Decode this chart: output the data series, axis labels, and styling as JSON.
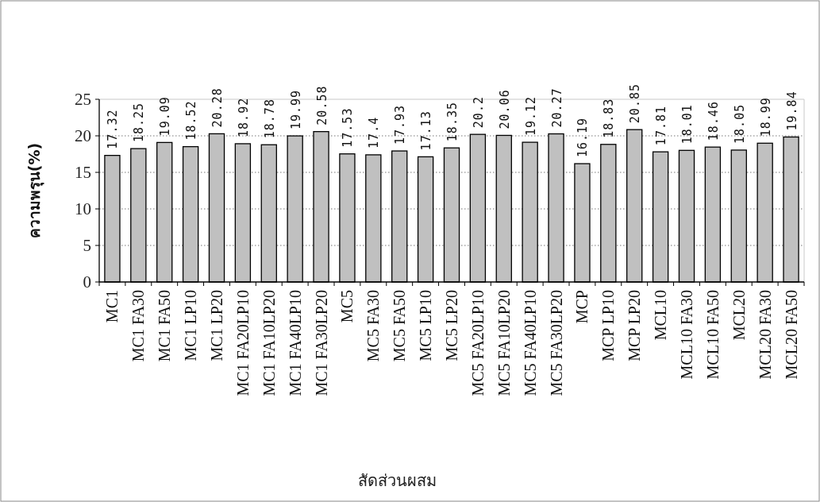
{
  "chart_data": {
    "type": "bar",
    "xlabel": "สัดส่วนผสม",
    "ylabel": "ความพรุน(%)",
    "categories": [
      "MC1",
      "MC1 FA30",
      "MC1 FA50",
      "MC1 LP10",
      "MC1 LP20",
      "MC1 FA20LP10",
      "MC1 FA10LP20",
      "MC1 FA40LP10",
      "MC1 FA30LP20",
      "MC5",
      "MC5 FA30",
      "MC5 FA50",
      "MC5 LP10",
      "MC5 LP20",
      "MC5 FA20LP10",
      "MC5 FA10LP20",
      "MC5 FA40LP10",
      "MC5 FA30LP20",
      "MCP",
      "MCP LP10",
      "MCP LP20",
      "MCL10",
      "MCL10 FA30",
      "MCL10 FA50",
      "MCL20",
      "MCL20 FA30",
      "MCL20 FA50"
    ],
    "values": [
      17.32,
      18.25,
      19.09,
      18.52,
      20.28,
      18.92,
      18.78,
      19.99,
      20.58,
      17.53,
      17.4,
      17.93,
      17.13,
      18.35,
      20.2,
      20.06,
      19.12,
      20.27,
      16.19,
      18.83,
      20.85,
      17.81,
      18.01,
      18.46,
      18.05,
      18.99,
      19.84
    ],
    "color": "#c0c0c0",
    "ylim": [
      0,
      25
    ],
    "yticks": [
      0,
      5,
      10,
      15,
      20,
      25
    ],
    "grid": "y",
    "data_labels": true
  }
}
